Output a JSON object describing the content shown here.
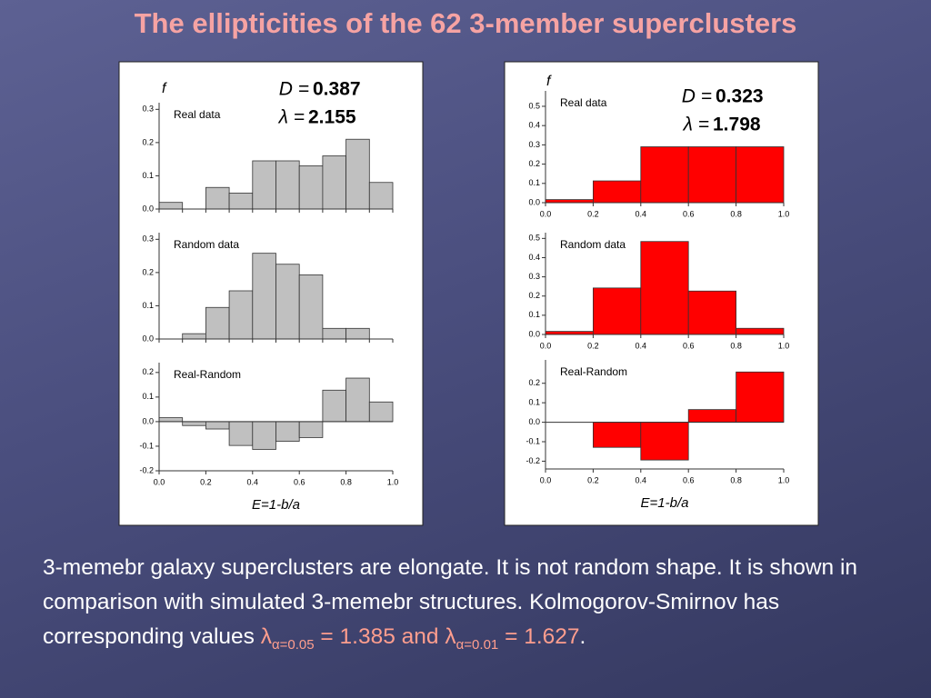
{
  "title": "The ellipticities of the 62 3-member superclusters",
  "chart_data": [
    {
      "type": "histogram",
      "label": "Real data",
      "ylabel": "f",
      "color": "#c0c0c0",
      "annotations": [
        {
          "text": "D =",
          "value": 0.387
        },
        {
          "text": "λ =",
          "value": 2.155
        }
      ],
      "bins": [
        0,
        0.1,
        0.2,
        0.3,
        0.4,
        0.5,
        0.6,
        0.7,
        0.8,
        0.9,
        1.0
      ],
      "values": [
        0.02,
        0,
        0.065,
        0.048,
        0.145,
        0.145,
        0.13,
        0.16,
        0.21,
        0.08
      ],
      "ylim": [
        0,
        0.32
      ],
      "yticks": [
        {
          "value": 0,
          "label": "0.0"
        },
        0.1,
        0.2,
        0.3
      ]
    },
    {
      "type": "histogram",
      "label": "Random data",
      "color": "#c0c0c0",
      "bins": [
        0,
        0.1,
        0.2,
        0.3,
        0.4,
        0.5,
        0.6,
        0.7,
        0.8,
        0.9,
        1.0
      ],
      "values": [
        0,
        0.016,
        0.095,
        0.145,
        0.258,
        0.225,
        0.193,
        0.032,
        0.032,
        0
      ],
      "ylim": [
        0,
        0.32
      ],
      "yticks": [
        {
          "value": 0,
          "label": "0.0"
        },
        0.1,
        0.2,
        0.3
      ]
    },
    {
      "type": "histogram",
      "label": "Real-Random",
      "color": "#c0c0c0",
      "xlabel": "E=1-b/a",
      "bins": [
        0,
        0.1,
        0.2,
        0.3,
        0.4,
        0.5,
        0.6,
        0.7,
        0.8,
        0.9,
        1.0
      ],
      "values": [
        0.016,
        -0.016,
        -0.03,
        -0.097,
        -0.113,
        -0.08,
        -0.065,
        0.128,
        0.177,
        0.08
      ],
      "ylim": [
        -0.2,
        0.24
      ],
      "yticks": [
        -0.2,
        -0.1,
        {
          "value": 0,
          "label": "0.0"
        },
        0.1,
        0.2
      ],
      "xticks": [
        {
          "value": 0,
          "label": "0.0"
        },
        0.2,
        0.4,
        0.6,
        0.8,
        {
          "value": 1,
          "label": "1.0"
        }
      ]
    },
    {
      "type": "histogram",
      "label": "Real data",
      "ylabel": "f",
      "color": "#ff0000",
      "annotations": [
        {
          "text": "D =",
          "value": 0.323
        },
        {
          "text": "λ =",
          "value": 1.798
        }
      ],
      "bins": [
        0,
        0.2,
        0.4,
        0.6,
        0.8,
        1.0
      ],
      "values": [
        0.016,
        0.113,
        0.29,
        0.29,
        0.29
      ],
      "ylim": [
        0,
        0.58
      ],
      "yticks": [
        {
          "value": 0,
          "label": "0.0"
        },
        0.1,
        0.2,
        0.3,
        0.4,
        0.5
      ],
      "xticks": [
        {
          "value": 0,
          "label": "0.0"
        },
        0.2,
        0.4,
        0.6,
        0.8,
        {
          "value": 1,
          "label": "1.0"
        }
      ]
    },
    {
      "type": "histogram",
      "label": "Random data",
      "color": "#ff0000",
      "bins": [
        0,
        0.2,
        0.4,
        0.6,
        0.8,
        1.0
      ],
      "values": [
        0.016,
        0.242,
        0.484,
        0.226,
        0.032
      ],
      "ylim": [
        0,
        0.53
      ],
      "yticks": [
        {
          "value": 0,
          "label": "0.0"
        },
        0.1,
        0.2,
        0.3,
        0.4,
        0.5
      ],
      "xticks": [
        {
          "value": 0,
          "label": "0.0"
        },
        0.2,
        0.4,
        0.6,
        0.8,
        {
          "value": 1,
          "label": "1.0"
        }
      ]
    },
    {
      "type": "histogram",
      "label": "Real-Random",
      "color": "#ff0000",
      "xlabel": "E=1-b/a",
      "bins": [
        0,
        0.2,
        0.4,
        0.6,
        0.8,
        1.0
      ],
      "values": [
        0,
        -0.129,
        -0.194,
        0.065,
        0.258
      ],
      "ylim": [
        -0.24,
        0.32
      ],
      "yticks": [
        -0.2,
        -0.1,
        {
          "value": 0,
          "label": "0.0"
        },
        0.1,
        0.2
      ],
      "xticks": [
        {
          "value": 0,
          "label": "0.0"
        },
        0.2,
        0.4,
        0.6,
        0.8,
        {
          "value": 1,
          "label": "1.0"
        }
      ]
    }
  ],
  "text": {
    "body": "3-memebr galaxy superclusters are elongate. It is not random shape. It is shown in comparison with simulated 3-memebr structures. Kolmogorov-Smirnov has corresponding values",
    "lambda": "λ",
    "sub1": "α=0.05",
    "eq1": "=",
    "v1": 1.385,
    "and": "and",
    "sub2": "α=0.01",
    "eq2": "=",
    "v2": 1.627,
    "end": "."
  }
}
